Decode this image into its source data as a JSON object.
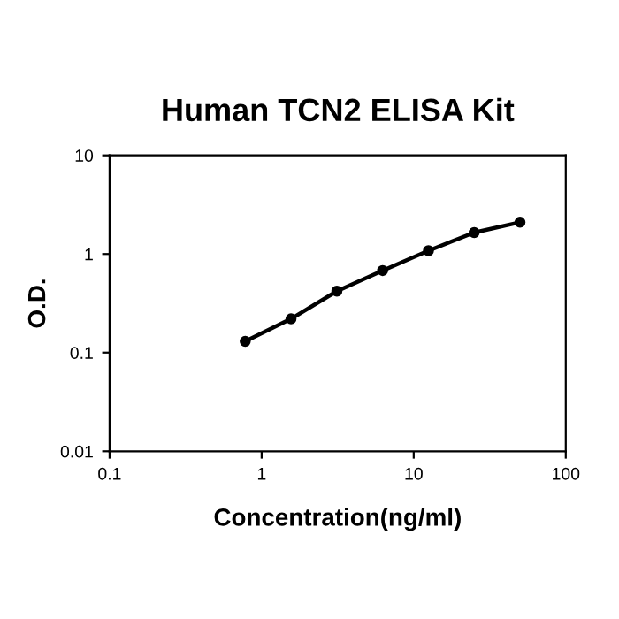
{
  "chart_data": {
    "type": "line",
    "title": "Human TCN2 ELISA Kit",
    "xlabel": "Concentration(ng/ml)",
    "ylabel": "O.D.",
    "x": [
      0.78,
      1.56,
      3.125,
      6.25,
      12.5,
      25,
      50
    ],
    "series": [
      {
        "color": "#000000",
        "values": [
          0.13,
          0.22,
          0.42,
          0.68,
          1.08,
          1.65,
          2.1
        ]
      }
    ],
    "log": "xy",
    "xlim": [
      0.1,
      100
    ],
    "ylim": [
      0.01,
      10
    ],
    "xticks": [
      0.1,
      1,
      10,
      100
    ],
    "yticks": [
      0.01,
      0.1,
      1,
      10
    ],
    "marker": "circle",
    "line_style": "solid",
    "grid": false,
    "legend": false
  }
}
